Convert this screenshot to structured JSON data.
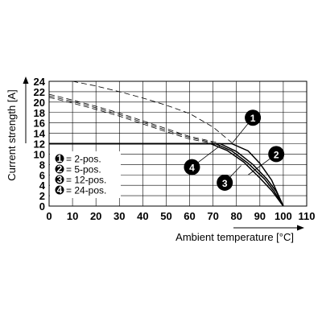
{
  "chart_data": {
    "type": "line",
    "title": "",
    "xlabel": "Ambient temperature [°C]",
    "ylabel": "Current strength [A]",
    "xlim": [
      0,
      110
    ],
    "ylim": [
      0,
      24
    ],
    "x_ticks": [
      0,
      10,
      20,
      30,
      40,
      50,
      60,
      70,
      80,
      90,
      100,
      110
    ],
    "y_ticks": [
      0,
      2,
      4,
      6,
      8,
      10,
      12,
      14,
      16,
      18,
      20,
      22,
      24
    ],
    "grid": true,
    "legend_position": "left-middle",
    "series": [
      {
        "name": "2-pos.",
        "marker": "1",
        "style": "solid",
        "x": [
          0,
          78,
          85,
          90,
          95,
          100
        ],
        "y": [
          12,
          12,
          10.6,
          8.2,
          5.0,
          0
        ]
      },
      {
        "name": "5-pos.",
        "marker": "2",
        "style": "solid",
        "x": [
          0,
          73,
          80,
          87,
          93,
          97,
          100
        ],
        "y": [
          12,
          12,
          10.5,
          8.0,
          5.2,
          2.8,
          0
        ]
      },
      {
        "name": "12-pos.",
        "marker": "3",
        "style": "solid",
        "x": [
          0,
          71,
          78,
          85,
          92,
          96,
          100
        ],
        "y": [
          12,
          12,
          10.6,
          8.2,
          5.2,
          2.9,
          0
        ]
      },
      {
        "name": "24-pos.",
        "marker": "4",
        "style": "solid",
        "x": [
          0,
          69,
          76,
          83,
          90,
          95,
          100
        ],
        "y": [
          12,
          12,
          10.7,
          8.5,
          5.4,
          3.0,
          0
        ]
      },
      {
        "name": "",
        "style": "dashed",
        "x": [
          10,
          20,
          30,
          40,
          50,
          60,
          70,
          78
        ],
        "y": [
          24,
          23.1,
          22.0,
          20.8,
          19.4,
          17.8,
          15.2,
          12.2
        ]
      },
      {
        "name": "",
        "style": "dashed",
        "x": [
          0,
          10,
          20,
          30,
          40,
          50,
          60,
          72
        ],
        "y": [
          21.5,
          20.4,
          19.2,
          17.9,
          16.4,
          14.9,
          13.4,
          12.2
        ]
      },
      {
        "name": "",
        "style": "dashed",
        "x": [
          0,
          10,
          20,
          30,
          40,
          50,
          60,
          70
        ],
        "y": [
          21.2,
          20.1,
          18.9,
          17.6,
          16.1,
          14.6,
          13.2,
          12.2
        ]
      },
      {
        "name": "",
        "style": "dashed",
        "x": [
          0,
          10,
          20,
          30,
          40,
          50,
          60,
          68
        ],
        "y": [
          20.9,
          19.8,
          18.6,
          17.3,
          15.8,
          14.3,
          12.9,
          12.2
        ]
      }
    ],
    "legend_entries": [
      {
        "marker": "1",
        "label": "= 2-pos."
      },
      {
        "marker": "2",
        "label": "= 5-pos."
      },
      {
        "marker": "3",
        "label": "= 12-pos."
      },
      {
        "marker": "4",
        "label": "= 24-pos."
      }
    ],
    "callouts": [
      {
        "marker": "1",
        "at": [
          87,
          17
        ],
        "points_to": [
          78,
          12
        ]
      },
      {
        "marker": "2",
        "at": [
          97,
          10
        ],
        "points_to": [
          85,
          6
        ]
      },
      {
        "marker": "4",
        "at": [
          61,
          7.5
        ],
        "points_to": [
          73,
          11.6
        ]
      },
      {
        "marker": "3",
        "at": [
          75,
          4.5
        ],
        "points_to": [
          82,
          7.8
        ]
      }
    ]
  }
}
